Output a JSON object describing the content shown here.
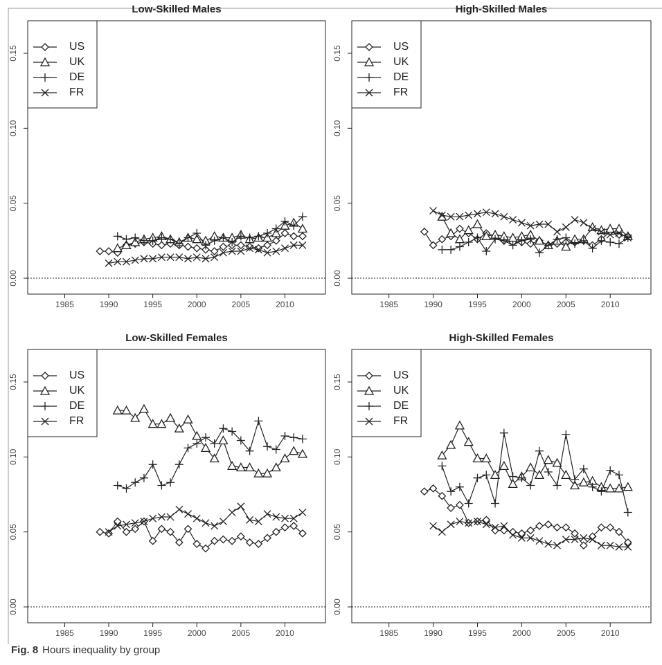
{
  "chart_data": [
    {
      "type": "line",
      "title": "Low-Skilled Males",
      "x": [
        1989,
        1990,
        1991,
        1992,
        1993,
        1994,
        1995,
        1996,
        1997,
        1998,
        1999,
        2000,
        2001,
        2002,
        2003,
        2004,
        2005,
        2006,
        2007,
        2008,
        2009,
        2010,
        2011,
        2012
      ],
      "series": [
        {
          "name": "US",
          "marker": "diamond",
          "color": "#222222",
          "values": [
            0.018,
            0.018,
            0.017,
            0.022,
            0.023,
            0.024,
            0.023,
            0.022,
            0.023,
            0.022,
            0.021,
            0.02,
            0.019,
            0.018,
            0.021,
            0.022,
            0.022,
            0.021,
            0.02,
            0.022,
            0.025,
            0.03,
            0.028,
            0.028
          ]
        },
        {
          "name": "UK",
          "marker": "triangle",
          "color": "#222222",
          "values": [
            null,
            null,
            0.02,
            0.022,
            0.024,
            0.026,
            0.027,
            0.028,
            0.026,
            0.024,
            0.027,
            0.026,
            0.025,
            0.028,
            0.027,
            0.027,
            0.029,
            0.026,
            0.027,
            0.027,
            0.03,
            0.035,
            0.037,
            0.033
          ]
        },
        {
          "name": "DE",
          "marker": "plus",
          "color": "#222222",
          "values": [
            null,
            null,
            0.028,
            0.026,
            0.027,
            0.025,
            0.025,
            0.027,
            0.026,
            0.023,
            0.027,
            0.03,
            0.022,
            0.025,
            0.027,
            0.024,
            0.028,
            0.027,
            0.028,
            0.03,
            0.033,
            0.038,
            0.035,
            0.041
          ]
        },
        {
          "name": "FR",
          "marker": "cross",
          "color": "#222222",
          "values": [
            null,
            0.01,
            0.011,
            0.011,
            0.012,
            0.013,
            0.013,
            0.014,
            0.014,
            0.014,
            0.013,
            0.014,
            0.013,
            0.014,
            0.017,
            0.018,
            0.018,
            0.02,
            0.019,
            0.017,
            0.018,
            0.02,
            0.022,
            0.022
          ]
        }
      ],
      "xlim": [
        1980.8,
        2014.6
      ],
      "xticks": [
        1985,
        1990,
        1995,
        2000,
        2005,
        2010
      ],
      "ylim": [
        -0.0106,
        0.1717
      ],
      "yticks": [
        {
          "value": 0,
          "label": "0.00"
        },
        {
          "value": 0.05,
          "label": "0.05"
        },
        {
          "value": 0.1,
          "label": "0.10"
        },
        {
          "value": 0.15,
          "label": "0.15"
        }
      ],
      "reference_line": 0,
      "legend": "top-left"
    },
    {
      "type": "line",
      "title": "High-Skilled Males",
      "x": [
        1989,
        1990,
        1991,
        1992,
        1993,
        1994,
        1995,
        1996,
        1997,
        1998,
        1999,
        2000,
        2001,
        2002,
        2003,
        2004,
        2005,
        2006,
        2007,
        2008,
        2009,
        2010,
        2011,
        2012
      ],
      "series": [
        {
          "name": "US",
          "marker": "diamond",
          "color": "#222222",
          "values": [
            0.031,
            0.022,
            0.026,
            0.028,
            0.033,
            0.03,
            0.026,
            0.03,
            0.028,
            0.025,
            0.024,
            0.024,
            0.023,
            0.025,
            0.022,
            0.023,
            0.024,
            0.024,
            0.025,
            0.022,
            0.026,
            0.031,
            0.029,
            0.028
          ]
        },
        {
          "name": "UK",
          "marker": "triangle",
          "color": "#222222",
          "values": [
            null,
            null,
            0.041,
            0.03,
            0.026,
            0.032,
            0.036,
            0.028,
            0.029,
            0.028,
            0.027,
            0.028,
            0.029,
            0.025,
            0.022,
            0.025,
            0.021,
            0.026,
            0.026,
            0.034,
            0.032,
            0.033,
            0.033,
            0.028
          ]
        },
        {
          "name": "DE",
          "marker": "plus",
          "color": "#222222",
          "values": [
            null,
            null,
            0.019,
            0.019,
            0.021,
            0.024,
            0.027,
            0.018,
            0.026,
            0.025,
            0.022,
            0.025,
            0.026,
            0.017,
            0.022,
            0.026,
            0.027,
            0.023,
            0.025,
            0.02,
            0.025,
            0.024,
            0.023,
            0.027
          ]
        },
        {
          "name": "FR",
          "marker": "cross",
          "color": "#222222",
          "values": [
            null,
            0.045,
            0.042,
            0.041,
            0.041,
            0.042,
            0.043,
            0.044,
            0.043,
            0.041,
            0.039,
            0.037,
            0.035,
            0.036,
            0.036,
            0.031,
            0.034,
            0.039,
            0.037,
            0.033,
            0.031,
            0.029,
            0.03,
            0.027
          ]
        }
      ],
      "xlim": [
        1980.8,
        2014.6
      ],
      "xticks": [
        1985,
        1990,
        1995,
        2000,
        2005,
        2010
      ],
      "ylim": [
        -0.0106,
        0.1717
      ],
      "yticks": [
        {
          "value": 0,
          "label": "0.00"
        },
        {
          "value": 0.05,
          "label": "0.05"
        },
        {
          "value": 0.1,
          "label": "0.10"
        },
        {
          "value": 0.15,
          "label": "0.15"
        }
      ],
      "reference_line": 0,
      "legend": "top-left"
    },
    {
      "type": "line",
      "title": "Low-Skilled Females",
      "x": [
        1989,
        1990,
        1991,
        1992,
        1993,
        1994,
        1995,
        1996,
        1997,
        1998,
        1999,
        2000,
        2001,
        2002,
        2003,
        2004,
        2005,
        2006,
        2007,
        2008,
        2009,
        2010,
        2011,
        2012
      ],
      "series": [
        {
          "name": "US",
          "marker": "diamond",
          "color": "#222222",
          "values": [
            0.05,
            0.049,
            0.057,
            0.05,
            0.052,
            0.057,
            0.044,
            0.052,
            0.05,
            0.043,
            0.052,
            0.042,
            0.039,
            0.044,
            0.045,
            0.044,
            0.047,
            0.043,
            0.042,
            0.046,
            0.05,
            0.053,
            0.054,
            0.049
          ]
        },
        {
          "name": "UK",
          "marker": "triangle",
          "color": "#222222",
          "values": [
            null,
            null,
            0.131,
            0.131,
            0.126,
            0.132,
            0.122,
            0.122,
            0.126,
            0.119,
            0.125,
            0.114,
            0.106,
            0.099,
            0.111,
            0.094,
            0.093,
            0.093,
            0.089,
            0.089,
            0.093,
            0.099,
            0.104,
            0.102
          ]
        },
        {
          "name": "DE",
          "marker": "plus",
          "color": "#222222",
          "values": [
            null,
            null,
            0.081,
            0.079,
            0.083,
            0.086,
            0.095,
            0.081,
            0.083,
            0.095,
            0.106,
            0.109,
            0.113,
            0.109,
            0.119,
            0.117,
            0.111,
            0.104,
            0.124,
            0.107,
            0.105,
            0.114,
            0.113,
            0.112
          ]
        },
        {
          "name": "FR",
          "marker": "cross",
          "color": "#222222",
          "values": [
            null,
            0.05,
            0.054,
            0.055,
            0.056,
            0.057,
            0.059,
            0.06,
            0.06,
            0.065,
            0.062,
            0.059,
            0.056,
            0.054,
            0.057,
            0.063,
            0.067,
            0.058,
            0.057,
            0.062,
            0.06,
            0.059,
            0.059,
            0.063
          ]
        }
      ],
      "xlim": [
        1980.8,
        2014.6
      ],
      "xticks": [
        1985,
        1990,
        1995,
        2000,
        2005,
        2010
      ],
      "ylim": [
        -0.0106,
        0.1717
      ],
      "yticks": [
        {
          "value": 0,
          "label": "0.00"
        },
        {
          "value": 0.05,
          "label": "0.05"
        },
        {
          "value": 0.1,
          "label": "0.10"
        },
        {
          "value": 0.15,
          "label": "0.15"
        }
      ],
      "reference_line": 0,
      "legend": "top-left"
    },
    {
      "type": "line",
      "title": "High-Skilled Females",
      "x": [
        1989,
        1990,
        1991,
        1992,
        1993,
        1994,
        1995,
        1996,
        1997,
        1998,
        1999,
        2000,
        2001,
        2002,
        2003,
        2004,
        2005,
        2006,
        2007,
        2008,
        2009,
        2010,
        2011,
        2012
      ],
      "series": [
        {
          "name": "US",
          "marker": "diamond",
          "color": "#222222",
          "values": [
            0.077,
            0.079,
            0.074,
            0.066,
            0.068,
            0.056,
            0.057,
            0.058,
            0.051,
            0.051,
            0.05,
            0.049,
            0.051,
            0.054,
            0.055,
            0.053,
            0.053,
            0.049,
            0.041,
            0.047,
            0.053,
            0.053,
            0.05,
            0.043
          ]
        },
        {
          "name": "UK",
          "marker": "triangle",
          "color": "#222222",
          "values": [
            null,
            null,
            0.101,
            0.108,
            0.121,
            0.11,
            0.099,
            0.099,
            0.088,
            0.094,
            0.082,
            0.087,
            0.093,
            0.088,
            0.098,
            0.096,
            0.088,
            0.081,
            0.083,
            0.084,
            0.08,
            0.079,
            0.079,
            0.08
          ]
        },
        {
          "name": "DE",
          "marker": "plus",
          "color": "#222222",
          "values": [
            null,
            null,
            0.094,
            0.077,
            0.08,
            0.069,
            0.086,
            0.088,
            0.069,
            0.116,
            0.087,
            0.086,
            0.081,
            0.104,
            0.09,
            0.081,
            0.115,
            0.085,
            0.092,
            0.08,
            0.077,
            0.091,
            0.088,
            0.063
          ]
        },
        {
          "name": "FR",
          "marker": "cross",
          "color": "#222222",
          "values": [
            null,
            0.054,
            0.05,
            0.055,
            0.057,
            0.056,
            0.057,
            0.055,
            0.053,
            0.054,
            0.048,
            0.046,
            0.046,
            0.044,
            0.042,
            0.041,
            0.045,
            0.045,
            0.046,
            0.045,
            0.041,
            0.041,
            0.04,
            0.04
          ]
        }
      ],
      "xlim": [
        1980.8,
        2014.6
      ],
      "xticks": [
        1985,
        1990,
        1995,
        2000,
        2005,
        2010
      ],
      "ylim": [
        -0.0106,
        0.1717
      ],
      "yticks": [
        {
          "value": 0,
          "label": "0.00"
        },
        {
          "value": 0.05,
          "label": "0.05"
        },
        {
          "value": 0.1,
          "label": "0.10"
        },
        {
          "value": 0.15,
          "label": "0.15"
        }
      ],
      "reference_line": 0,
      "legend": "top-left"
    }
  ],
  "caption": {
    "label": "Fig. 8",
    "text": "Hours inequality by group"
  }
}
